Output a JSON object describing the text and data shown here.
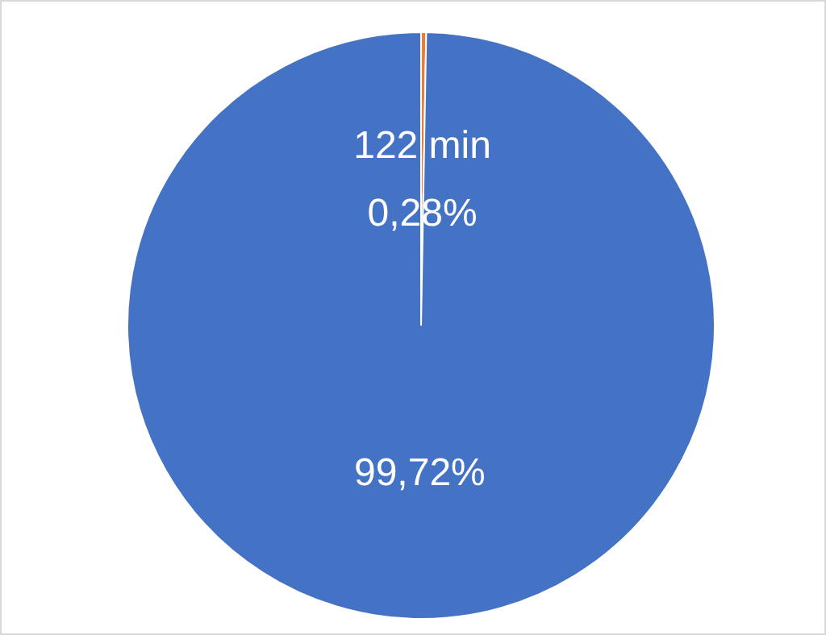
{
  "chart_data": {
    "type": "pie",
    "categories": [
      null,
      null
    ],
    "values": [
      0.28,
      99.72
    ],
    "colors": [
      "#ed7d31",
      "#4472c4"
    ],
    "value_labels": [
      "122 min\n0,28%",
      "99,72%"
    ],
    "legend": false
  }
}
